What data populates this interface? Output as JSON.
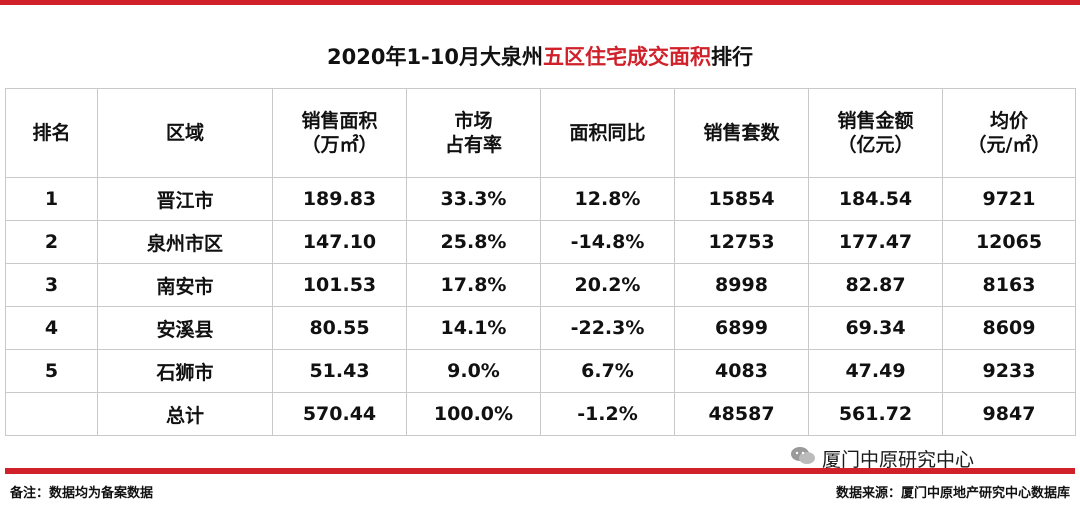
{
  "title": {
    "prefix": "2020年1-10月大泉州",
    "highlight": "五区住宅成交面积",
    "suffix": "排行"
  },
  "table": {
    "headers": [
      {
        "line1": "排名",
        "line2": ""
      },
      {
        "line1": "区域",
        "line2": ""
      },
      {
        "line1": "销售面积",
        "line2": "（万㎡）"
      },
      {
        "line1": "市场",
        "line2": "占有率"
      },
      {
        "line1": "面积同比",
        "line2": ""
      },
      {
        "line1": "销售套数",
        "line2": ""
      },
      {
        "line1": "销售金额",
        "line2": "（亿元）"
      },
      {
        "line1": "均价",
        "line2": "（元/㎡）"
      }
    ],
    "rows": [
      [
        "1",
        "晋江市",
        "189.83",
        "33.3%",
        "12.8%",
        "15854",
        "184.54",
        "9721"
      ],
      [
        "2",
        "泉州市区",
        "147.10",
        "25.8%",
        "-14.8%",
        "12753",
        "177.47",
        "12065"
      ],
      [
        "3",
        "南安市",
        "101.53",
        "17.8%",
        "20.2%",
        "8998",
        "82.87",
        "8163"
      ],
      [
        "4",
        "安溪县",
        "80.55",
        "14.1%",
        "-22.3%",
        "6899",
        "69.34",
        "8609"
      ],
      [
        "5",
        "石狮市",
        "51.43",
        "9.0%",
        "6.7%",
        "4083",
        "47.49",
        "9233"
      ],
      [
        "",
        "总计",
        "570.44",
        "100.0%",
        "-1.2%",
        "48587",
        "561.72",
        "9847"
      ]
    ]
  },
  "footer": {
    "note": "备注：数据均为备案数据",
    "source": "数据来源：厦门中原地产研究中心数据库",
    "wechat": "厦门中原研究中心"
  },
  "colors": {
    "accent": "#d0202a"
  },
  "icons": {
    "wechat": "wechat-icon"
  }
}
